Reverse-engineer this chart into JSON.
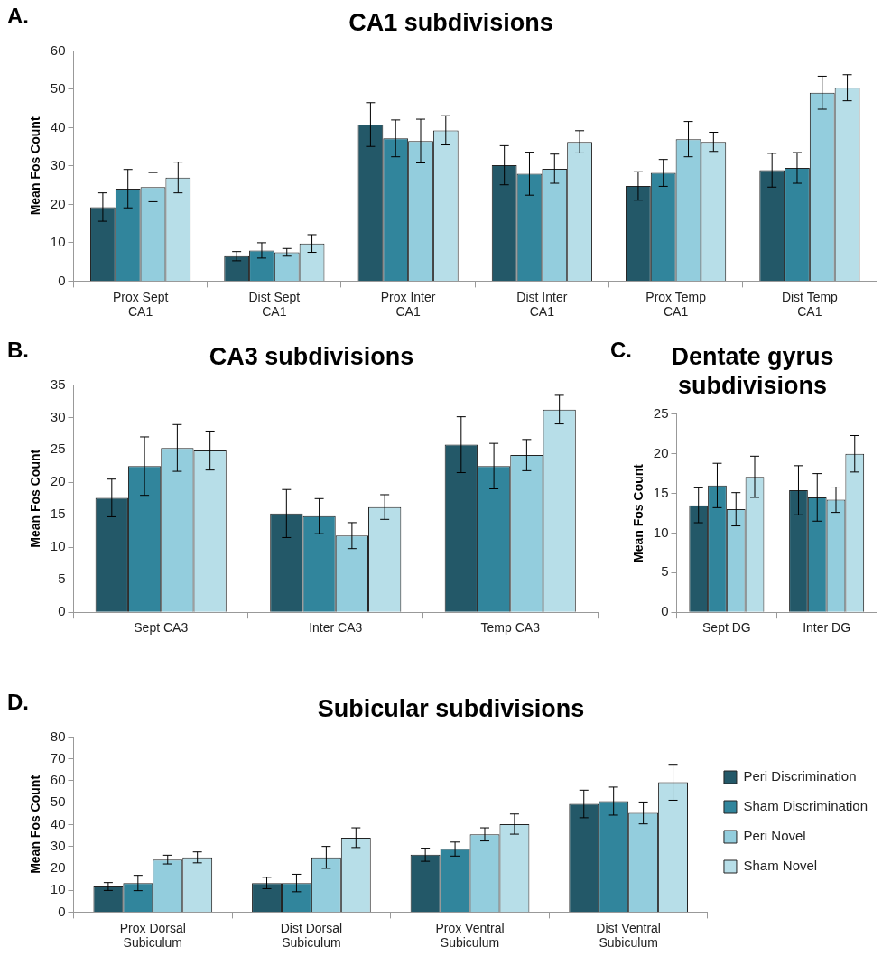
{
  "chart_data": [
    {
      "type": "bar",
      "title": "CA1 subdivisions",
      "ylabel": "Mean Fos Count",
      "annotations": [
        "A."
      ],
      "categories": [
        "Prox Sept CA1",
        "Dist Sept CA1",
        "Prox Inter CA1",
        "Dist Inter CA1",
        "Prox Temp CA1",
        "Dist Temp CA1"
      ],
      "ylim": [
        0,
        60
      ],
      "yticks": [
        0,
        10,
        20,
        30,
        40,
        50,
        60
      ],
      "grid": false,
      "legend": false,
      "series": [
        {
          "color": "#235868",
          "values": [
            19.3,
            6.5,
            40.8,
            30.2,
            24.8,
            28.9
          ],
          "errors": [
            3.7,
            1.2,
            5.7,
            5.1,
            3.7,
            4.4
          ]
        },
        {
          "color": "#31859c",
          "values": [
            24.1,
            8,
            37.2,
            28,
            28.2,
            29.5
          ],
          "errors": [
            5,
            2,
            4.8,
            5.6,
            3.5,
            4
          ]
        },
        {
          "color": "#93cddd",
          "values": [
            24.5,
            7.5,
            36.5,
            29.3,
            37,
            49.1
          ],
          "errors": [
            3.8,
            1,
            5.7,
            3.8,
            4.6,
            4.3
          ]
        },
        {
          "color": "#b7dee8",
          "values": [
            27,
            9.8,
            39.3,
            36.3,
            36.3,
            50.4
          ],
          "errors": [
            4,
            2.3,
            3.8,
            2.9,
            2.5,
            3.4
          ]
        }
      ]
    },
    {
      "type": "bar",
      "title": "CA3 subdivisions",
      "ylabel": "Mean Fos Count",
      "annotations": [
        "B."
      ],
      "categories": [
        "Sept CA3",
        "Inter CA3",
        "Temp CA3"
      ],
      "ylim": [
        0,
        35
      ],
      "yticks": [
        0,
        5,
        10,
        15,
        20,
        25,
        30,
        35
      ],
      "grid": false,
      "legend": false,
      "series": [
        {
          "color": "#235868",
          "values": [
            17.6,
            15.2,
            25.8
          ],
          "errors": [
            2.9,
            3.7,
            4.3
          ]
        },
        {
          "color": "#31859c",
          "values": [
            22.5,
            14.8,
            22.5
          ],
          "errors": [
            4.5,
            2.7,
            3.5
          ]
        },
        {
          "color": "#93cddd",
          "values": [
            25.3,
            11.8,
            24.2
          ],
          "errors": [
            3.6,
            2,
            2.4
          ]
        },
        {
          "color": "#b7dee8",
          "values": [
            24.9,
            16.2,
            31.2
          ],
          "errors": [
            3,
            1.9,
            2.2
          ]
        }
      ]
    },
    {
      "type": "bar",
      "title": "Dentate gyrus subdivisions",
      "ylabel": "Mean Fos Count",
      "annotations": [
        "C."
      ],
      "categories": [
        "Sept DG",
        "Inter DG"
      ],
      "ylim": [
        0,
        25
      ],
      "yticks": [
        0,
        5,
        10,
        15,
        20,
        25
      ],
      "grid": false,
      "legend": false,
      "series": [
        {
          "color": "#235868",
          "values": [
            13.5,
            15.4
          ],
          "errors": [
            2.2,
            3.1
          ]
        },
        {
          "color": "#31859c",
          "values": [
            16,
            14.5
          ],
          "errors": [
            2.8,
            3
          ]
        },
        {
          "color": "#93cddd",
          "values": [
            13,
            14.2
          ],
          "errors": [
            2.1,
            1.6
          ]
        },
        {
          "color": "#b7dee8",
          "values": [
            17.1,
            20
          ],
          "errors": [
            2.6,
            2.3
          ]
        }
      ]
    },
    {
      "type": "bar",
      "title": "Subicular subdivisions",
      "ylabel": "Mean Fos Count",
      "annotations": [
        "D."
      ],
      "categories": [
        "Prox Dorsal Subiculum",
        "Dist Dorsal Subiculum",
        "Prox Ventral Subiculum",
        "Dist Ventral Subiculum"
      ],
      "ylim": [
        0,
        80
      ],
      "yticks": [
        0,
        10,
        20,
        30,
        40,
        50,
        60,
        70,
        80
      ],
      "grid": false,
      "legend": "right",
      "series": [
        {
          "name": "Peri Discrimination",
          "color": "#235868",
          "values": [
            11.7,
            13.3,
            26.2,
            49.4
          ],
          "errors": [
            1.8,
            2.6,
            3,
            6.3
          ]
        },
        {
          "name": "Sham Discrimination",
          "color": "#31859c",
          "values": [
            13.3,
            13.3,
            28.8,
            50.7
          ],
          "errors": [
            3.5,
            4,
            3.2,
            6.4
          ]
        },
        {
          "name": "Peri Novel",
          "color": "#93cddd",
          "values": [
            24,
            25,
            35.5,
            45.3
          ],
          "errors": [
            2,
            5,
            3,
            5
          ]
        },
        {
          "name": "Sham Novel",
          "color": "#b7dee8",
          "values": [
            25,
            34,
            40.2,
            59.3
          ],
          "errors": [
            2.5,
            4.5,
            4.6,
            8.2
          ]
        }
      ]
    }
  ]
}
